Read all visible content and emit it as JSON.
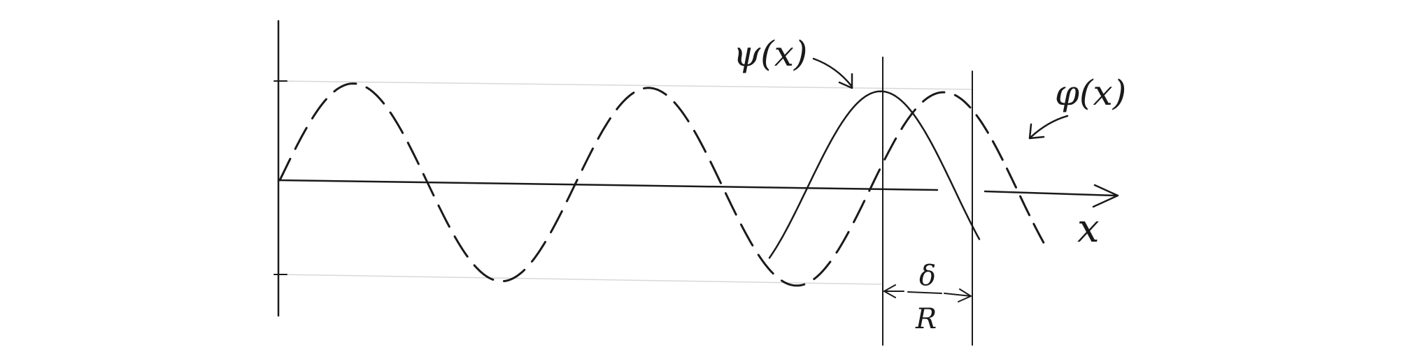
{
  "figure": {
    "labels": {
      "psi": "ψ(x)",
      "phi": "φ(x)",
      "x_axis": "x",
      "shift_numerator": "δ",
      "shift_denominator": "R"
    }
  }
}
